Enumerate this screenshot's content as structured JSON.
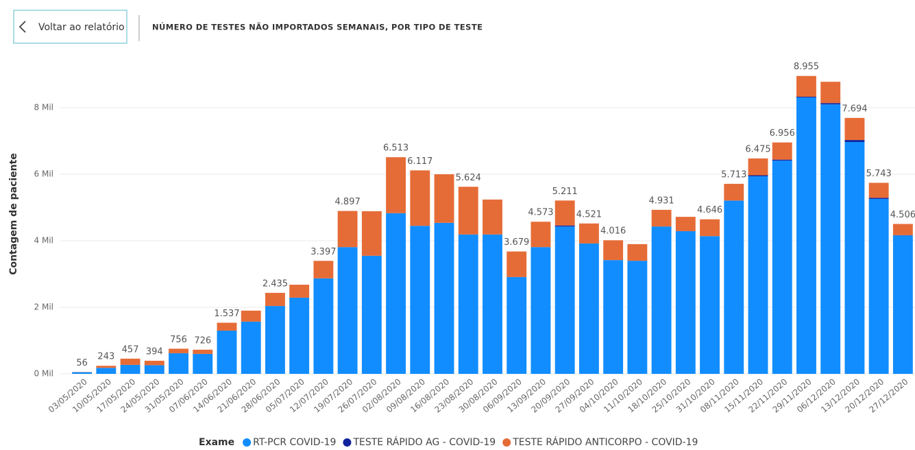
{
  "ui": {
    "back_button": "Voltar ao relatório"
  },
  "chart_data": {
    "type": "stacked_bar",
    "title": "NÚMERO DE TESTES NÃO IMPORTADOS SEMANAIS, POR TIPO DE TESTE",
    "y_label": "Contagem de paciente",
    "legend_title": "Exame",
    "grid": true,
    "ylim": [
      0,
      9300
    ],
    "yticks": [
      {
        "value": 0,
        "label": "0 Mil"
      },
      {
        "value": 2000,
        "label": "2 Mil"
      },
      {
        "value": 4000,
        "label": "4 Mil"
      },
      {
        "value": 6000,
        "label": "6 Mil"
      },
      {
        "value": 8000,
        "label": "8 Mil"
      }
    ],
    "categories": [
      "03/05/2020",
      "10/05/2020",
      "17/05/2020",
      "24/05/2020",
      "31/05/2020",
      "07/06/2020",
      "14/06/2020",
      "21/06/2020",
      "28/06/2020",
      "05/07/2020",
      "12/07/2020",
      "19/07/2020",
      "26/07/2020",
      "02/08/2020",
      "09/08/2020",
      "16/08/2020",
      "23/08/2020",
      "30/08/2020",
      "06/09/2020",
      "13/09/2020",
      "20/09/2020",
      "27/09/2020",
      "04/10/2020",
      "11/10/2020",
      "18/10/2020",
      "25/10/2020",
      "31/10/2020",
      "08/11/2020",
      "15/11/2020",
      "22/11/2020",
      "29/11/2020",
      "06/12/2020",
      "13/12/2020",
      "20/12/2020",
      "27/12/2020"
    ],
    "series": [
      {
        "name": "RT-PCR COVID-19",
        "color": "#118DFF",
        "values": [
          50,
          180,
          270,
          260,
          620,
          600,
          1300,
          1570,
          2040,
          2290,
          2870,
          3810,
          3550,
          4830,
          4450,
          4540,
          4190,
          4190,
          2910,
          3810,
          4430,
          3920,
          3420,
          3400,
          4430,
          4290,
          4140,
          5210,
          5940,
          6410,
          8310,
          8100,
          6970,
          5260,
          4160
        ]
      },
      {
        "name": "TESTE RÁPIDO AG - COVID-19",
        "color": "#12239E",
        "values": [
          0,
          0,
          0,
          0,
          0,
          0,
          0,
          0,
          0,
          0,
          0,
          0,
          0,
          0,
          0,
          0,
          0,
          0,
          0,
          0,
          30,
          0,
          0,
          0,
          0,
          0,
          0,
          0,
          30,
          30,
          20,
          40,
          60,
          30,
          10
        ]
      },
      {
        "name": "TESTE RÁPIDO ANTICORPO - COVID-19",
        "color": "#E66C37",
        "values": [
          6,
          63,
          187,
          134,
          136,
          126,
          237,
          330,
          395,
          390,
          527,
          1087,
          1340,
          1683,
          1667,
          1460,
          1434,
          1050,
          769,
          763,
          751,
          601,
          596,
          500,
          501,
          430,
          506,
          503,
          505,
          516,
          625,
          640,
          664,
          453,
          336
        ]
      }
    ],
    "totals": {
      "values": [
        56,
        243,
        457,
        394,
        756,
        726,
        1537,
        null,
        2435,
        null,
        3397,
        4897,
        null,
        6513,
        6117,
        null,
        5624,
        null,
        3679,
        4573,
        5211,
        4521,
        4016,
        null,
        4931,
        null,
        4646,
        5713,
        6475,
        6956,
        8955,
        null,
        7694,
        5743,
        4506
      ],
      "value_labels": [
        "56",
        "243",
        "457",
        "394",
        "756",
        "726",
        "1.537",
        null,
        "2.435",
        null,
        "3.397",
        "4.897",
        null,
        "6.513",
        "6.117",
        null,
        "5.624",
        null,
        "3.679",
        "4.573",
        "5.211",
        "4.521",
        "4.016",
        null,
        "4.931",
        null,
        "4.646",
        "5.713",
        "6.475",
        "6.956",
        "8.955",
        null,
        "7.694",
        "5.743",
        "4.506"
      ]
    }
  }
}
